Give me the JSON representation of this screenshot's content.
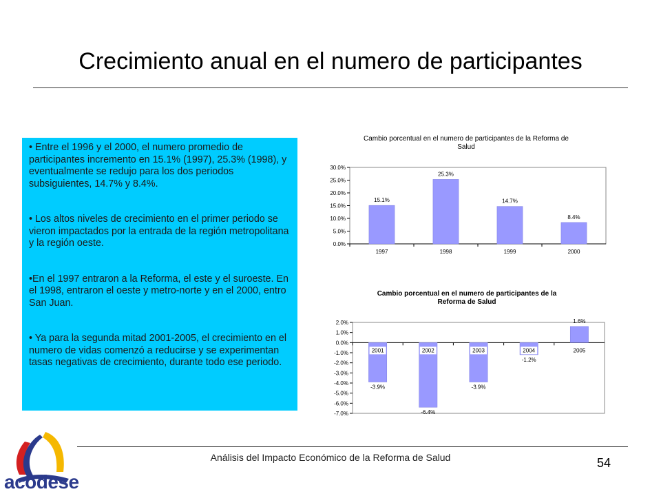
{
  "slide": {
    "title": "Crecimiento anual en el numero de participantes",
    "footer": "Análisis del Impacto Económico de la Reforma de Salud",
    "page_number": "54",
    "logo_text": "acodese"
  },
  "text_box": {
    "bullets": [
      "• Entre el 1996 y el 2000, el numero promedio de participantes incremento en 15.1% (1997), 25.3% (1998), y eventualmente se redujo para los dos periodos subsiguientes, 14.7% y 8.4%.",
      "• Los altos niveles de crecimiento en el primer periodo se vieron impactados por la entrada de la región metropolitana y la región oeste.",
      "•En el 1997 entraron a la Reforma, el este y el suroeste. En el 1998, entraron el oeste y metro-norte y en el 2000, entro San Juan.",
      "• Ya para la segunda mitad 2001-2005, el crecimiento en el numero de vidas comenzó a reducirse y se experimentan tasas negativas de crecimiento, durante todo ese periodo."
    ]
  },
  "colors": {
    "bar": "#9999ff",
    "text_box": "#00ccff",
    "logo_blue": "#2b3a8c",
    "logo_red": "#d42020",
    "logo_yellow": "#f5b800"
  },
  "chart_data": [
    {
      "type": "bar",
      "title": "Cambio porcentual en el numero de participantes de la Reforma de Salud",
      "categories": [
        "1997",
        "1998",
        "1999",
        "2000"
      ],
      "values": [
        15.1,
        25.3,
        14.7,
        8.4
      ],
      "data_labels": [
        "15.1%",
        "25.3%",
        "14.7%",
        "8.4%"
      ],
      "yticks": [
        "30.0%",
        "25.0%",
        "20.0%",
        "15.0%",
        "10.0%",
        "5.0%",
        "0.0%"
      ],
      "ylim": [
        0,
        30
      ],
      "grid": false,
      "legend": "none"
    },
    {
      "type": "bar",
      "title": "Cambio porcentual en el numero de participantes de la Reforma de Salud",
      "categories": [
        "2001",
        "2002",
        "2003",
        "2004",
        "2005"
      ],
      "values": [
        -3.9,
        -6.4,
        -3.9,
        -1.2,
        1.6
      ],
      "data_labels": [
        "-3.9%",
        "-6.4%",
        "-3.9%",
        "-1.2%",
        "1.6%"
      ],
      "yticks": [
        "2.0%",
        "1.0%",
        "0.0%",
        "-1.0%",
        "-2.0%",
        "-3.0%",
        "-4.0%",
        "-5.0%",
        "-6.0%",
        "-7.0%"
      ],
      "ylim": [
        -7,
        2
      ],
      "grid": false,
      "legend": "none"
    }
  ]
}
